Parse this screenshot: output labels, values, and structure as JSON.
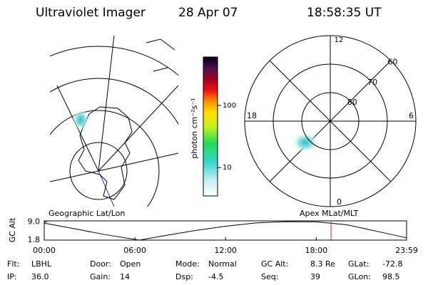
{
  "header": {
    "instrument": "Ultraviolet Imager",
    "date": "28 Apr 07",
    "time": "18:58:35 UT"
  },
  "colorbar": {
    "label": "photon cm⁻²s⁻¹",
    "range": [
      3.5,
      600
    ],
    "ticks": [
      100,
      10
    ],
    "log": true
  },
  "geo_map": {
    "label": "Geographic Lat/Lon"
  },
  "polar_map": {
    "label": "Apex MLat/MLT",
    "mlt_labels": [
      "12",
      "6",
      "0",
      "18"
    ],
    "lat_rings": [
      80,
      70,
      60
    ]
  },
  "alt_plot": {
    "y_label": "GC Alt",
    "yticks": [
      {
        "value": 9,
        "label": "9.0"
      },
      {
        "value": 1.8,
        "label": "1.8"
      }
    ],
    "ylim": [
      1.8,
      9.4
    ],
    "xticks": [
      {
        "value": 0,
        "label": "00:00"
      },
      {
        "value": 6,
        "label": "06:00"
      },
      {
        "value": 12,
        "label": "12:00"
      },
      {
        "value": 18,
        "label": "18:00"
      },
      {
        "value": 23.98,
        "label": "23:59"
      }
    ],
    "xlim": [
      0,
      23.98
    ],
    "x": [
      0,
      2,
      4,
      6.3,
      8,
      10,
      12,
      14,
      16,
      18,
      20,
      22,
      23.98
    ],
    "values": [
      8.5,
      6.3,
      4.0,
      1.8,
      3.6,
      5.6,
      7.3,
      8.6,
      9.1,
      9.0,
      7.9,
      5.3,
      2.7
    ],
    "marker_time": 18.98
  },
  "footer": {
    "rows": [
      [
        {
          "key": "Flt:",
          "value": "LBHL"
        },
        {
          "key": "Door:",
          "value": "Open"
        },
        {
          "key": "Mode:",
          "value": "Normal"
        },
        {
          "key": "GC Alt:",
          "value": "8.3 Re"
        },
        {
          "key": "GLat:",
          "value": "-72.8"
        }
      ],
      [
        {
          "key": "IP:",
          "value": "36.0"
        },
        {
          "key": "Gain:",
          "value": "14"
        },
        {
          "key": "Dsp:",
          "value": "-4.5"
        },
        {
          "key": "Seq:",
          "value": "39"
        },
        {
          "key": "GLon:",
          "value": "98.5"
        }
      ]
    ]
  }
}
